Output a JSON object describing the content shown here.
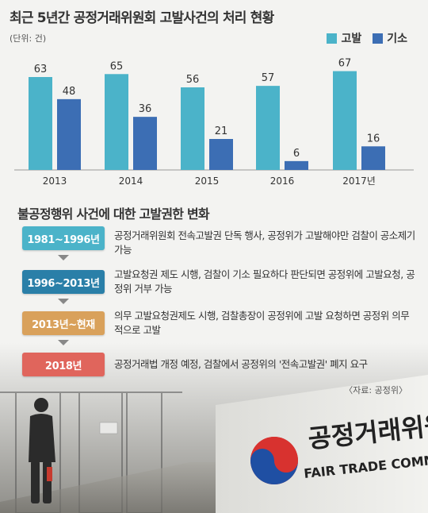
{
  "title": "최근 5년간 공정거래위원회 고발사건의 처리 현황",
  "unit": "(단위: 건)",
  "legend": [
    {
      "name": "고발",
      "color": "#4bb3c9"
    },
    {
      "name": "기소",
      "color": "#3c6eb4"
    }
  ],
  "chart_data": {
    "type": "bar",
    "title": "최근 5년간 공정거래위원회 고발사건의 처리 현황",
    "ylabel": "(단위: 건)",
    "categories": [
      "2013",
      "2014",
      "2015",
      "2016",
      "2017년"
    ],
    "series": [
      {
        "name": "고발",
        "values": [
          63,
          65,
          56,
          57,
          67
        ],
        "color": "#4bb3c9"
      },
      {
        "name": "기소",
        "values": [
          48,
          36,
          21,
          6,
          16
        ],
        "color": "#3c6eb4"
      }
    ],
    "ylim": [
      0,
      70
    ],
    "grid": false,
    "legend_position": "top-right",
    "data_labels": true
  },
  "timeline_title": "불공정행위 사건에 대한 고발권한 변화",
  "timeline": [
    {
      "period": "1981~1996년",
      "color": "#4bb3c9",
      "text": "공정거래위원회 전속고발권 단독 행사, 공정위가 고발해야만 검찰이 공소제기 가능"
    },
    {
      "period": "1996~2013년",
      "color": "#2a7fa8",
      "text": "고발요청권 제도 시행, 검찰이 기소 필요하다 판단되면 공정위에 고발요청, 공정위 거부 가능"
    },
    {
      "period": "2013년~현재",
      "color": "#d9a15b",
      "text": "의무 고발요청권제도 시행, 검찰총장이 공정위에 고발 요청하면 공정위 의무적으로 고발"
    },
    {
      "period": "2018년",
      "color": "#e0655c",
      "text": "공정거래법 개정 예정, 검찰에서 공정위의 '전속고발권' 폐지 요구"
    }
  ],
  "source": "〈자료: 공정위〉",
  "photo": {
    "sign_korean": "공정거래위원회",
    "sign_english": "FAIR TRADE COMMISSION",
    "door_sign": "공정거래위원회"
  }
}
